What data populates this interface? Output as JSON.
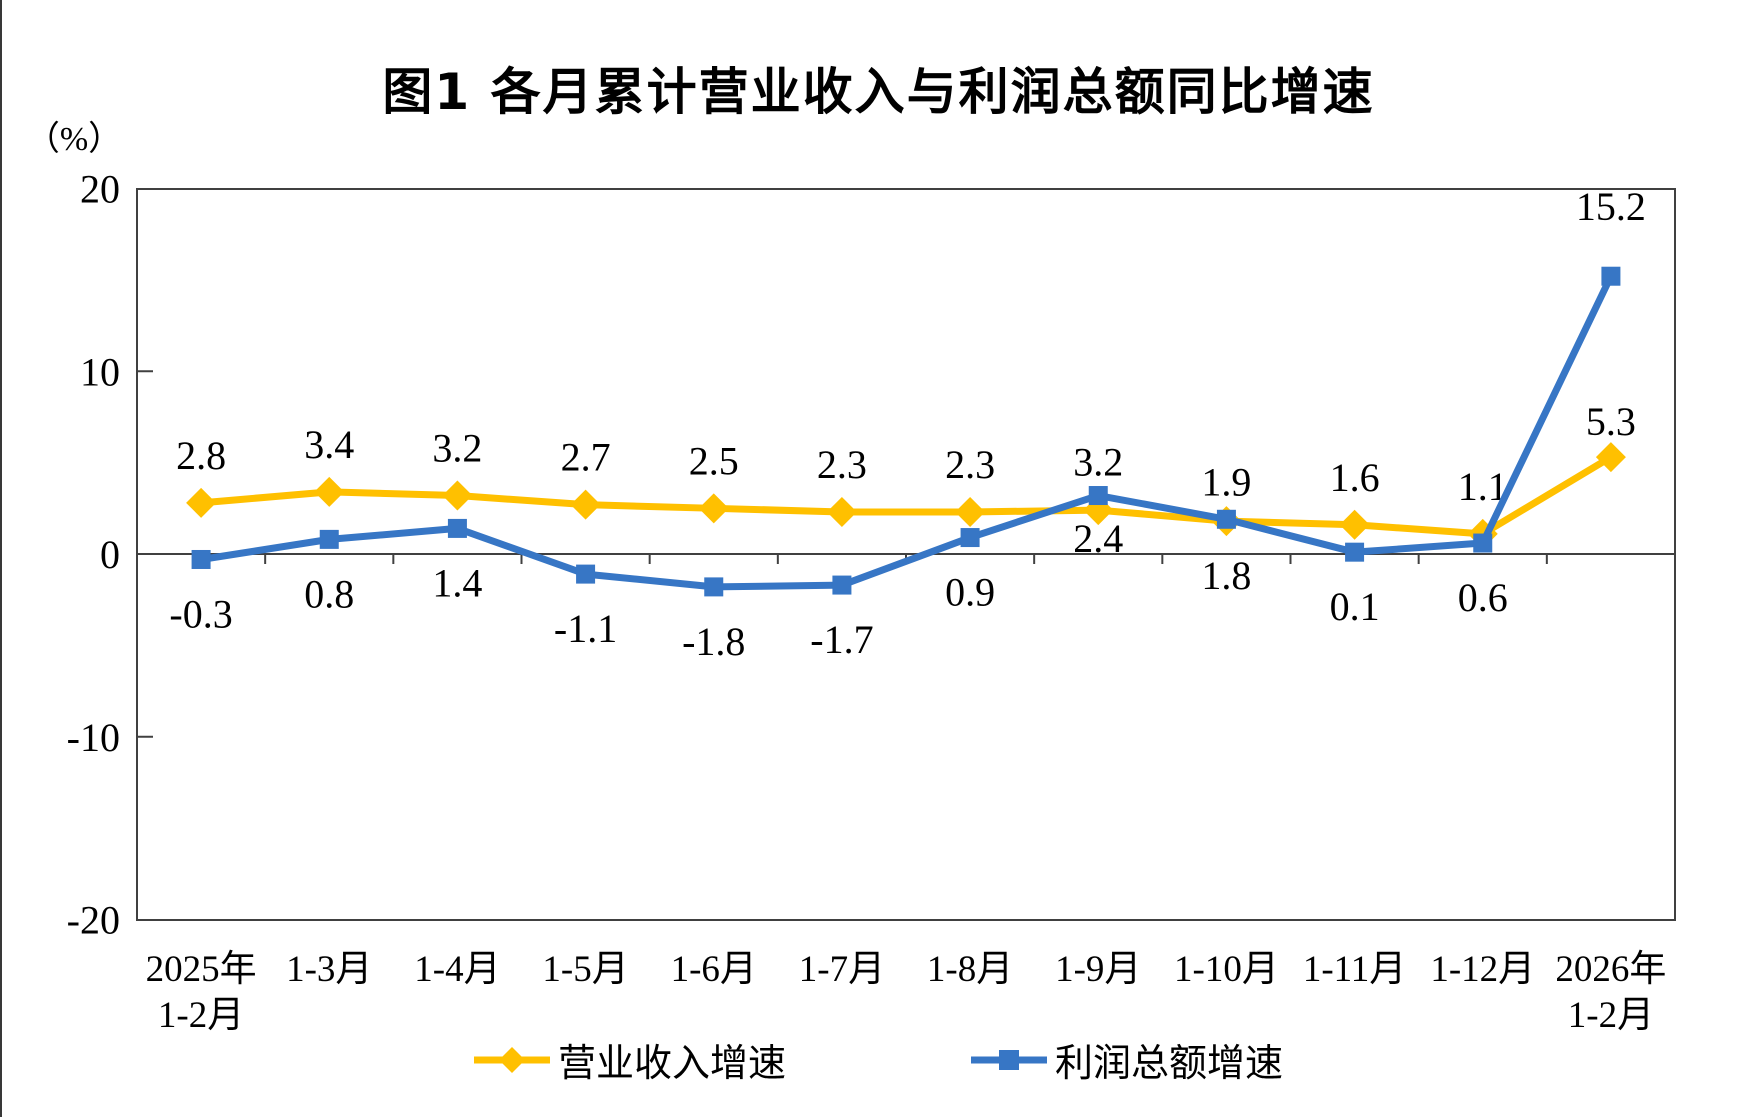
{
  "page": {
    "title": "图1 各月累计营业收入与利润总额同比增速"
  },
  "chart_data": {
    "type": "line",
    "title": "图1 各月累计营业收入与利润总额同比增速",
    "unit_label": "（%）",
    "ylim": [
      -20,
      20
    ],
    "yticks": [
      20,
      10,
      0,
      -10,
      -20
    ],
    "grid": "zero-line-only",
    "legend_position": "bottom",
    "categories": [
      "2025年\n1-2月",
      "1-3月",
      "1-4月",
      "1-5月",
      "1-6月",
      "1-7月",
      "1-8月",
      "1-9月",
      "1-10月",
      "1-11月",
      "1-12月",
      "2026年\n1-2月"
    ],
    "series": [
      {
        "name": "营业收入增速",
        "color": "#FFC000",
        "marker": "diamond",
        "values": [
          2.8,
          3.4,
          3.2,
          2.7,
          2.5,
          2.3,
          2.3,
          2.4,
          1.8,
          1.6,
          1.1,
          5.3
        ],
        "label_side": [
          "above",
          "above",
          "above",
          "above",
          "above",
          "above",
          "above",
          "below",
          "below",
          "above",
          "above",
          "above"
        ]
      },
      {
        "name": "利润总额增速",
        "color": "#3776C5",
        "marker": "square",
        "values": [
          -0.3,
          0.8,
          1.4,
          -1.1,
          -1.8,
          -1.7,
          0.9,
          3.2,
          1.9,
          0.1,
          0.6,
          15.2
        ],
        "label_side": [
          "below",
          "below",
          "below",
          "below",
          "below",
          "below",
          "below",
          "above",
          "above",
          "below",
          "below",
          "above"
        ]
      }
    ]
  },
  "colors": {
    "axis": "#404040",
    "text": "#000000",
    "revenue": "#FFC000",
    "profit": "#3776C5",
    "background": "#FFFFFF"
  }
}
